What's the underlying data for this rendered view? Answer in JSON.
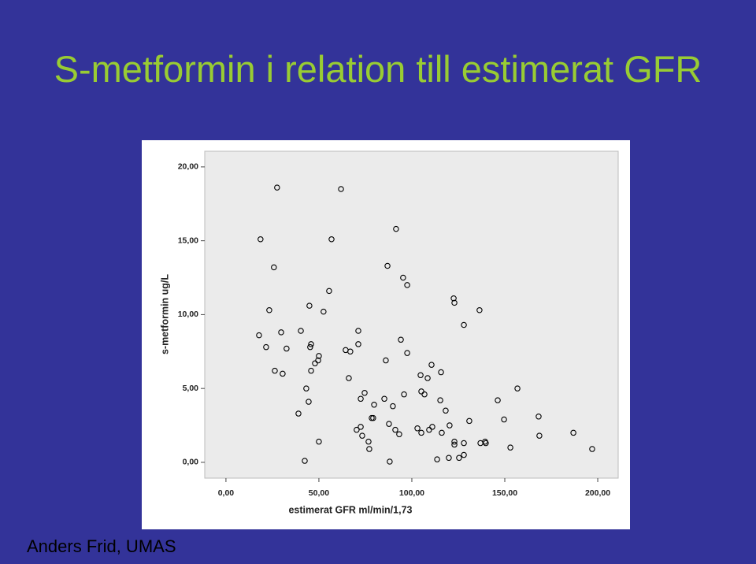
{
  "title": "S-metformin i relation till estimerat GFR",
  "footer": "Anders Frid, UMAS",
  "chart_data": {
    "type": "scatter",
    "xlabel": "estimerat GFR ml/min/1,73",
    "ylabel": "s-metformin ug/L",
    "color": "#000000",
    "xlim": [
      -11.4,
      211
    ],
    "ylim": [
      -1.07,
      21.06
    ],
    "xticks": [
      {
        "value": 0,
        "label": "0,00"
      },
      {
        "value": 50,
        "label": "50,00"
      },
      {
        "value": 100,
        "label": "100,00"
      },
      {
        "value": 150,
        "label": "150,00"
      },
      {
        "value": 200,
        "label": "200,00"
      }
    ],
    "yticks": [
      {
        "value": 0,
        "label": "0,00"
      },
      {
        "value": 5,
        "label": "5,00"
      },
      {
        "value": 10,
        "label": "10,00"
      },
      {
        "value": 15,
        "label": "15,00"
      },
      {
        "value": 20,
        "label": "20,00"
      }
    ],
    "x": [
      17.8,
      18.6,
      21.6,
      23.3,
      25.8,
      26.3,
      27.5,
      29.7,
      30.5,
      32.6,
      39.0,
      40.3,
      42.4,
      43.2,
      44.5,
      44.9,
      45.3,
      45.8,
      45.8,
      47.9,
      49.6,
      50.0,
      50.0,
      52.5,
      55.5,
      56.8,
      61.9,
      64.4,
      66.1,
      66.9,
      70.3,
      71.2,
      71.2,
      72.5,
      72.5,
      73.3,
      74.6,
      76.7,
      77.1,
      78.4,
      79.2,
      79.7,
      85.2,
      86.0,
      86.9,
      87.7,
      88.1,
      89.8,
      91.1,
      91.5,
      93.2,
      94.1,
      95.3,
      95.8,
      97.5,
      97.5,
      103.0,
      104.7,
      105.1,
      105.1,
      106.8,
      108.5,
      109.3,
      110.6,
      111.0,
      113.6,
      115.3,
      115.7,
      116.1,
      118.2,
      119.9,
      120.3,
      122.5,
      122.9,
      122.9,
      122.9,
      125.4,
      128.0,
      128.0,
      128.0,
      130.9,
      136.4,
      136.9,
      139.4,
      139.8,
      146.2,
      149.6,
      153.0,
      156.8,
      168.2,
      168.6,
      186.9,
      197.0
    ],
    "values": [
      8.6,
      15.1,
      7.8,
      10.3,
      13.2,
      6.2,
      18.6,
      8.8,
      6.0,
      7.7,
      3.3,
      8.9,
      0.1,
      5.0,
      4.1,
      10.6,
      7.8,
      8.0,
      6.2,
      6.7,
      6.9,
      7.2,
      1.4,
      10.2,
      11.6,
      15.1,
      18.5,
      7.6,
      5.7,
      7.5,
      2.2,
      8.0,
      8.9,
      4.3,
      2.4,
      1.8,
      4.7,
      1.4,
      0.9,
      3.0,
      3.0,
      3.9,
      4.3,
      6.9,
      13.3,
      2.6,
      0.05,
      3.8,
      2.2,
      15.8,
      1.9,
      8.3,
      12.5,
      4.6,
      12.0,
      7.4,
      2.3,
      5.9,
      4.8,
      2.0,
      4.6,
      5.7,
      2.2,
      6.6,
      2.4,
      0.2,
      4.2,
      6.1,
      2.0,
      3.5,
      0.3,
      2.5,
      11.1,
      10.8,
      1.4,
      1.2,
      0.3,
      9.3,
      1.3,
      0.5,
      2.8,
      10.3,
      1.3,
      1.4,
      1.3,
      4.2,
      2.9,
      1.0,
      5.0,
      3.1,
      1.8,
      2.0,
      0.9
    ]
  }
}
